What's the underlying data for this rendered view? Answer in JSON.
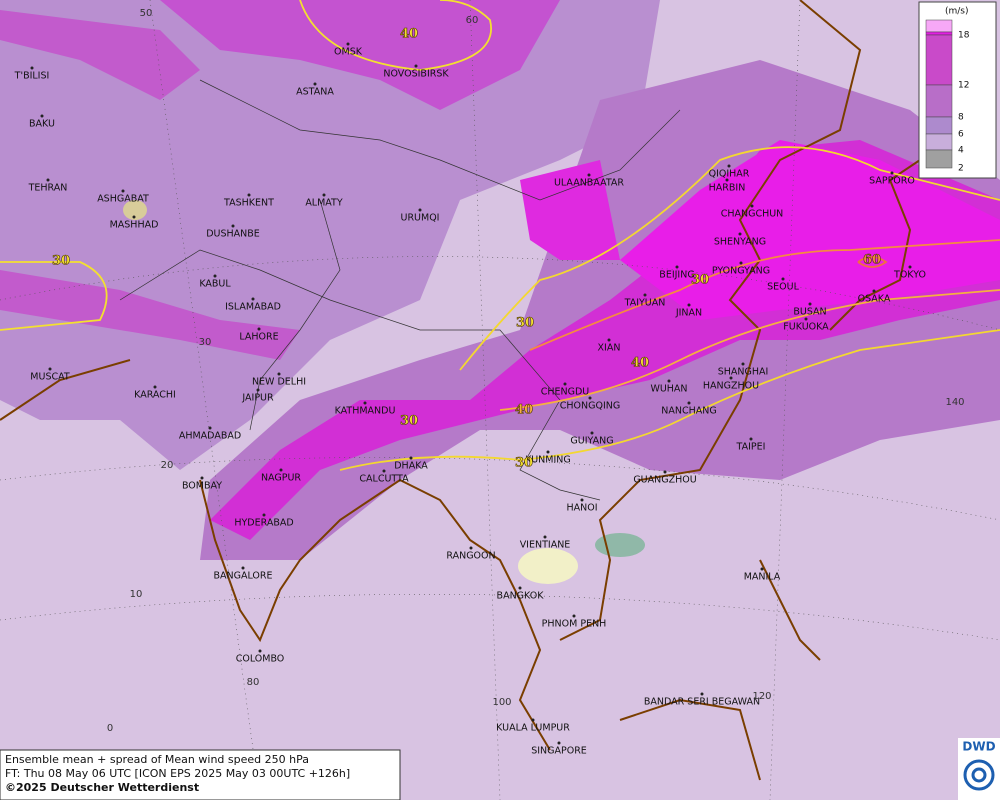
{
  "map": {
    "cities": [
      "OMSK",
      "NOVOSIBIRSK",
      "ASTANA",
      "T'BILISI",
      "BAKU",
      "TEHRAN",
      "ASHGABAT",
      "MASHHAD",
      "TASHKENT",
      "ALMATY",
      "DUSHANBE",
      "URUMQI",
      "ULAANBAATAR",
      "QIQIHAR",
      "HARBIN",
      "CHANGCHUN",
      "SHENYANG",
      "SAPPORO",
      "BEIJING",
      "PYONGYANG",
      "SEOUL",
      "TOKYO",
      "TAIYUAN",
      "JINAN",
      "BUSAN",
      "OSAKA",
      "FUKUOKA",
      "XIAN",
      "SHANGHAI",
      "HANGZHOU",
      "CHENGDU",
      "WUHAN",
      "CHONGQING",
      "NANCHANG",
      "KABUL",
      "ISLAMABAD",
      "LAHORE",
      "NEW DELHI",
      "JAIPUR",
      "KATHMANDU",
      "MUSCAT",
      "KARACHI",
      "AHMADABAD",
      "GUIYANG",
      "TAIPEI",
      "KUNMING",
      "DHAKA",
      "CALCUTTA",
      "BOMBAY",
      "NAGPUR",
      "GUANGZHOU",
      "HYDERABAD",
      "HANOI",
      "VIENTIANE",
      "RANGOON",
      "MANILA",
      "BANGALORE",
      "BANGKOK",
      "PHNOM PENH",
      "COLOMBO",
      "BANDAR SERI BEGAWAN",
      "KUALA LUMPUR",
      "SINGAPORE"
    ],
    "contour_labels": [
      40,
      30,
      30,
      30,
      60,
      40,
      40,
      30,
      30
    ],
    "grid_labels": [
      50,
      60,
      30,
      20,
      10,
      0,
      80,
      100,
      120,
      140
    ],
    "legend": {
      "unit": "(m/s)",
      "ticks": [
        18,
        12,
        8,
        6,
        4,
        2
      ],
      "colors": [
        "#e21ee2",
        "#c94ac9",
        "#b86ec8",
        "#ad8acd",
        "#c8aedb",
        "#a0a0a0"
      ]
    }
  },
  "footer": {
    "lines": [
      "Ensemble mean + spread of Mean wind speed 250 hPa",
      "FT: Thu 08 May 06 UTC [ICON EPS 2025 May 03 00UTC +126h]",
      "©2025 Deutscher Wetterdienst"
    ]
  },
  "logo": "DWD"
}
